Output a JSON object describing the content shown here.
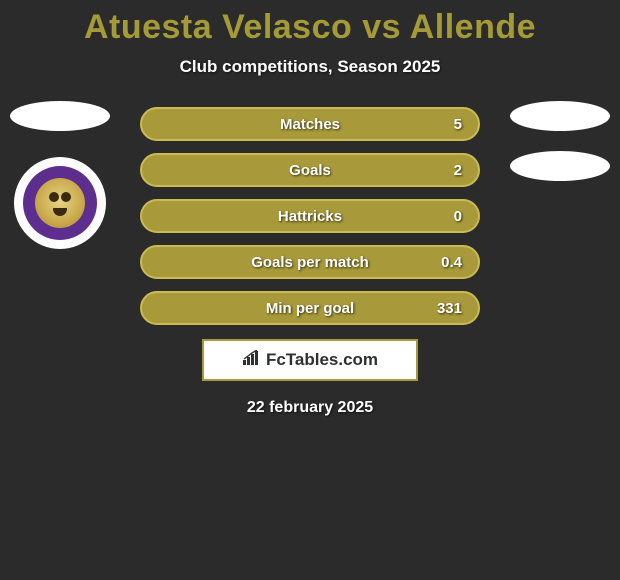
{
  "title": "Atuesta Velasco vs Allende",
  "title_color": "#a49a36",
  "subtitle": "Club competitions, Season 2025",
  "background_color": "#2b2b2b",
  "bars": {
    "fill_color": "#a89a3a",
    "border_color": "#c9bb52",
    "label_color": "#ffffff",
    "value_color": "#ffffff",
    "rows": [
      {
        "label": "Matches",
        "value": "5"
      },
      {
        "label": "Goals",
        "value": "2"
      },
      {
        "label": "Hattricks",
        "value": "0"
      },
      {
        "label": "Goals per match",
        "value": "0.4"
      },
      {
        "label": "Min per goal",
        "value": "331"
      }
    ]
  },
  "club_badge": {
    "outer_color": "#ffffff",
    "ring_color": "#5e2e8f",
    "lion_color": "#c9a94b"
  },
  "brand": {
    "text": "FcTables.com",
    "box_bg": "#ffffff",
    "box_border": "#a89a3a",
    "text_color": "#303030"
  },
  "date": "22 february 2025"
}
